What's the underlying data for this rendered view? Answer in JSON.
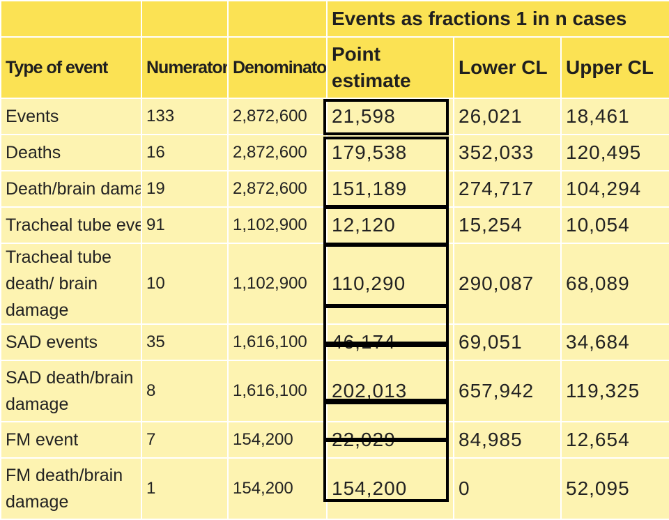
{
  "table": {
    "group_header": "Events as fractions 1 in n cases",
    "columns": [
      "Type of event",
      "Numerator",
      "Denominator",
      "Point estimate",
      "Lower CL",
      "Upper CL"
    ],
    "rows": [
      {
        "type": "Events",
        "numerator": "133",
        "denominator": "2,872,600",
        "point": "21,598",
        "lower": "26,021",
        "upper": "18,461"
      },
      {
        "type": "Deaths",
        "numerator": "16",
        "denominator": "2,872,600",
        "point": "179,538",
        "lower": "352,033",
        "upper": "120,495"
      },
      {
        "type": "Death/brain damage",
        "numerator": "19",
        "denominator": "2,872,600",
        "point": "151,189",
        "lower": "274,717",
        "upper": "104,294"
      },
      {
        "type": "Tracheal tube events",
        "numerator": "91",
        "denominator": "1,102,900",
        "point": "12,120",
        "lower": "15,254",
        "upper": "10,054"
      },
      {
        "type": "Tracheal tube death/ brain damage",
        "numerator": "10",
        "denominator": "1,102,900",
        "point": "110,290",
        "lower": "290,087",
        "upper": "68,089"
      },
      {
        "type": "SAD events",
        "numerator": "35",
        "denominator": "1,616,100",
        "point": "46,174",
        "lower": "69,051",
        "upper": "34,684"
      },
      {
        "type": "SAD death/brain damage",
        "numerator": "8",
        "denominator": "1,616,100",
        "point": "202,013",
        "lower": "657,942",
        "upper": "119,325"
      },
      {
        "type": "FM event",
        "numerator": "7",
        "denominator": "154,200",
        "point": "22,029",
        "lower": "84,985",
        "upper": "12,654"
      },
      {
        "type": "FM death/brain damage",
        "numerator": "1",
        "denominator": "154,200",
        "point": "154,200",
        "lower": "0",
        "upper": "52,095"
      }
    ]
  }
}
